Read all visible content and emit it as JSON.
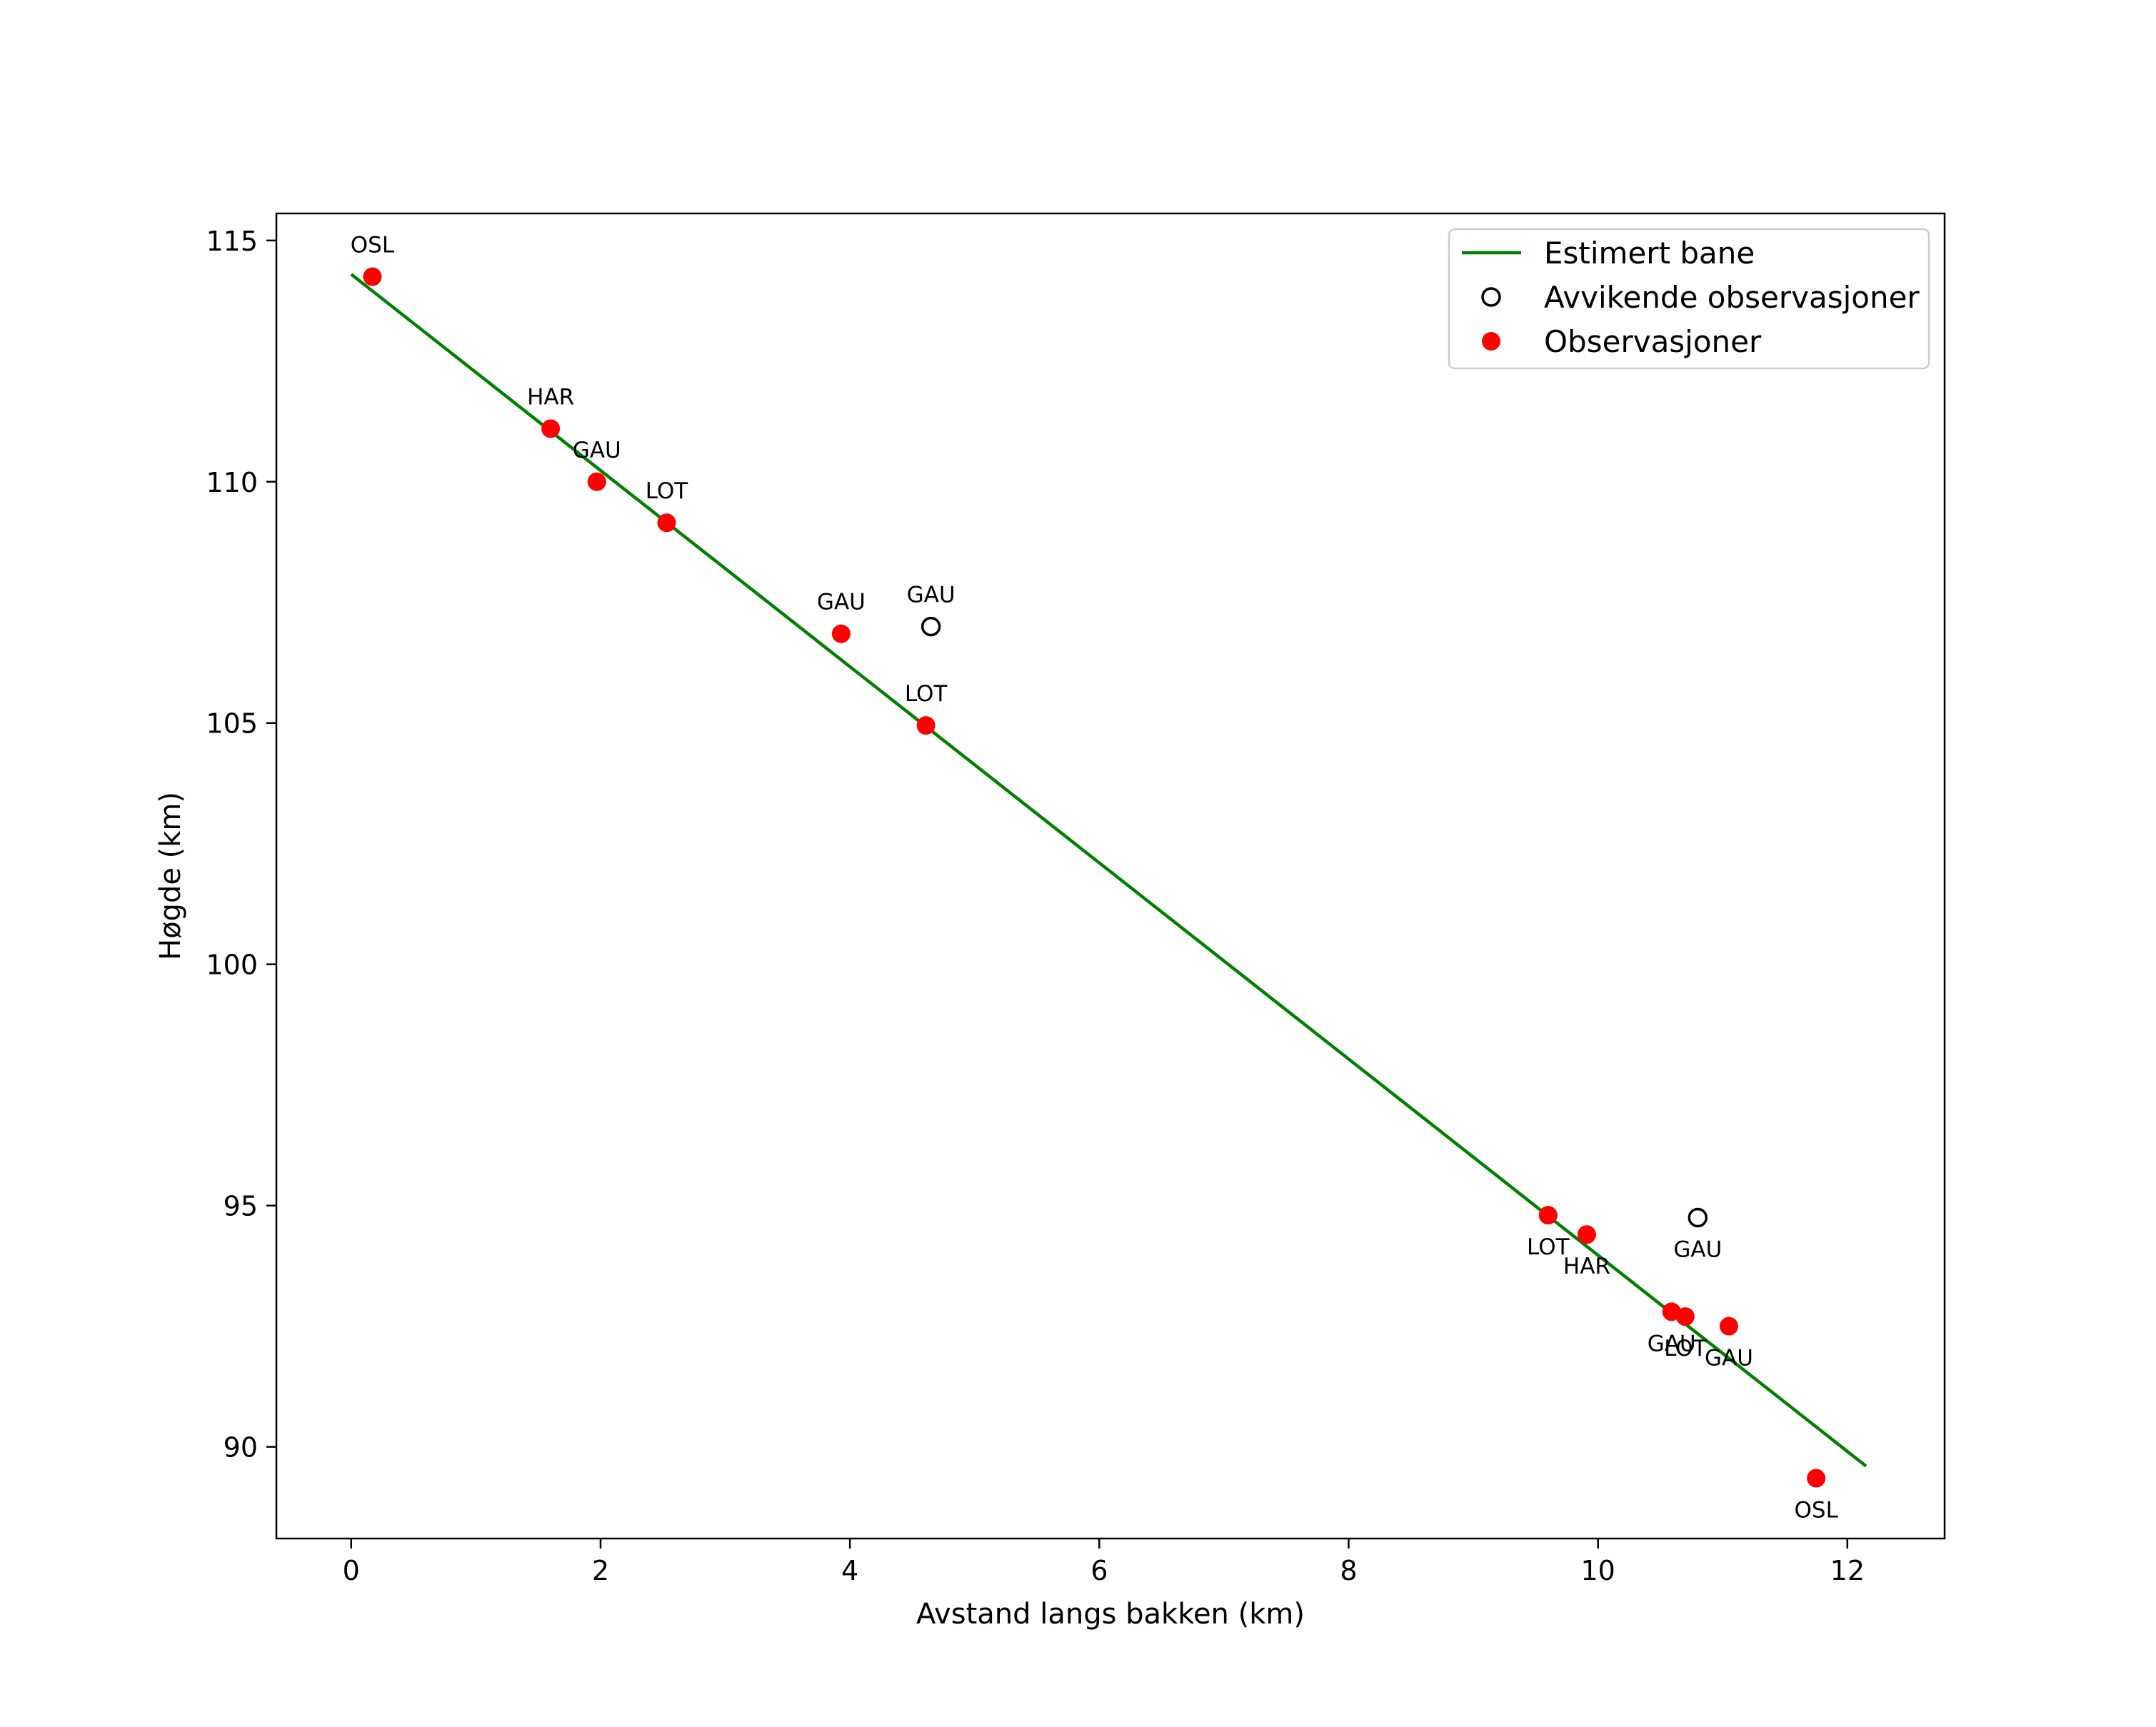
{
  "chart_data": {
    "type": "scatter",
    "xlabel": "Avstand langs bakken (km)",
    "ylabel": "Høgde (km)",
    "xlim": [
      -0.6,
      12.78
    ],
    "ylim": [
      88.1,
      115.56
    ],
    "xticks": [
      0,
      2,
      4,
      6,
      8,
      10,
      12
    ],
    "yticks": [
      90,
      95,
      100,
      105,
      110,
      115
    ],
    "grid": false,
    "legend_position": "top-right",
    "colors": {
      "line": "#008000",
      "observed": "#ff0000",
      "outlier_edge": "#000000"
    },
    "series": [
      {
        "name": "Estimert bane",
        "kind": "line",
        "x": [
          0.0,
          12.15
        ],
        "y": [
          114.3,
          89.6
        ]
      },
      {
        "name": "Avvikende observasjoner",
        "kind": "scatter-open",
        "points": [
          {
            "x": 4.65,
            "y": 107.0,
            "label": "GAU"
          },
          {
            "x": 10.8,
            "y": 94.75,
            "label": "GAU"
          }
        ]
      },
      {
        "name": "Observasjoner",
        "kind": "scatter-filled",
        "points": [
          {
            "x": 0.17,
            "y": 114.25,
            "label": "OSL"
          },
          {
            "x": 1.6,
            "y": 111.1,
            "label": "HAR"
          },
          {
            "x": 1.97,
            "y": 110.0,
            "label": "GAU"
          },
          {
            "x": 2.53,
            "y": 109.15,
            "label": "LOT"
          },
          {
            "x": 3.93,
            "y": 106.85,
            "label": "GAU"
          },
          {
            "x": 4.61,
            "y": 104.95,
            "label": "LOT"
          },
          {
            "x": 9.6,
            "y": 94.8,
            "label": "LOT"
          },
          {
            "x": 9.91,
            "y": 94.4,
            "label": "HAR"
          },
          {
            "x": 10.59,
            "y": 92.8,
            "label": "GAU"
          },
          {
            "x": 10.7,
            "y": 92.7,
            "label": "LOT"
          },
          {
            "x": 11.05,
            "y": 92.5,
            "label": "GAU"
          },
          {
            "x": 11.75,
            "y": 89.35,
            "label": "OSL"
          }
        ]
      }
    ]
  }
}
